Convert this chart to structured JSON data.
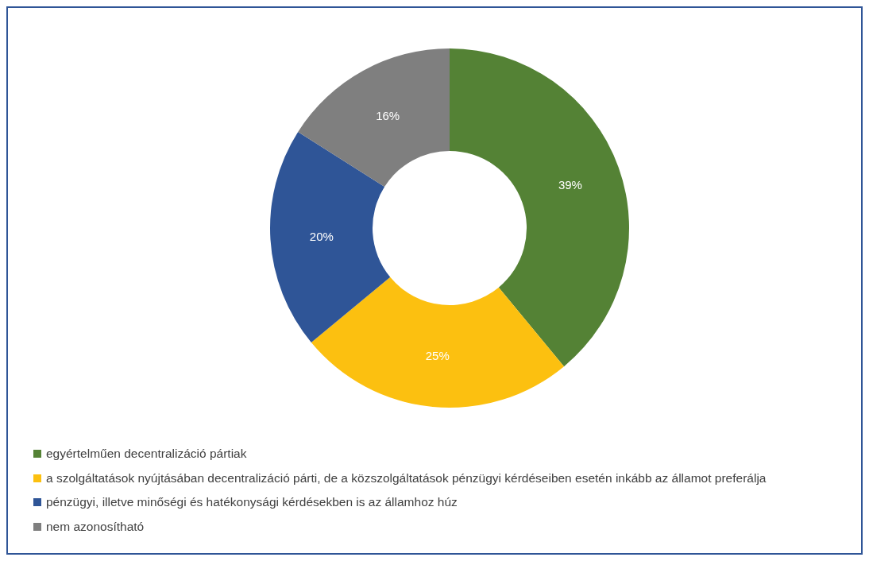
{
  "chart_data": {
    "type": "donut",
    "categories": [
      "egyértelműen decentralizáció pártiak",
      "a szolgáltatások nyújtásában decentralizáció párti, de a közszolgáltatások pénzügyi kérdéseiben esetén inkább az államot preferálja",
      "pénzügyi, illetve minőségi és hatékonysági kérdésekben is az államhoz húz",
      "nem azonosítható"
    ],
    "values": [
      39,
      25,
      20,
      16
    ],
    "colors": [
      "#548235",
      "#fcc010",
      "#2f5597",
      "#7f7f7f"
    ],
    "value_labels": [
      "39%",
      "25%",
      "20%",
      "16%"
    ],
    "legend": "bottom left"
  }
}
